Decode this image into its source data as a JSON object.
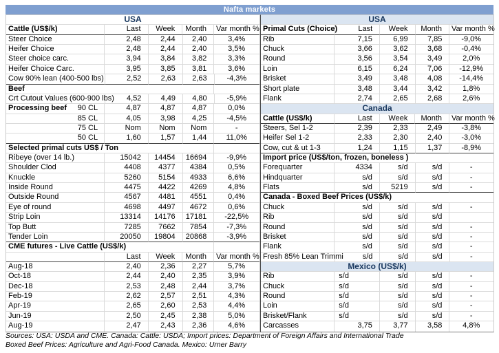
{
  "banner": {
    "title": "Nafta markets",
    "bg_color": "#7f9fd0",
    "text_color": "#ffffff"
  },
  "colors": {
    "section_header_bg": "#dbe5f1",
    "section_header_text": "#17365d",
    "gridline": "#dadada"
  },
  "left_table": {
    "columns": [
      "Last",
      "Week",
      "Month",
      "Var month %"
    ],
    "rows": [
      {
        "kind": "title",
        "label": "USA"
      },
      {
        "kind": "colheader",
        "label": "Cattle (US$/k)"
      },
      {
        "kind": "data",
        "label": "Steer Choice",
        "last": "2,48",
        "week": "2,44",
        "month": "2,40",
        "var": "3,4%"
      },
      {
        "kind": "data",
        "label": "Heifer Choice",
        "last": "2,48",
        "week": "2,44",
        "month": "2,40",
        "var": "3,5%"
      },
      {
        "kind": "data",
        "label": "Steer choice carc.",
        "last": "3,94",
        "week": "3,84",
        "month": "3,82",
        "var": "3,3%"
      },
      {
        "kind": "data",
        "label": "Heifer Choice Carc.",
        "last": "3,95",
        "week": "3,85",
        "month": "3,81",
        "var": "3,6%"
      },
      {
        "kind": "data",
        "label": "Cow 90% lean (400-500 lbs)",
        "last": "2,52",
        "week": "2,63",
        "month": "2,63",
        "var": "-4,3%"
      },
      {
        "kind": "section",
        "label": "Beef"
      },
      {
        "kind": "data",
        "label": "Crt Cutout Values (600-900 lbs)",
        "last": "4,52",
        "week": "4,49",
        "month": "4,80",
        "var": "-5,9%"
      },
      {
        "kind": "data",
        "label": "Processing beef",
        "bold_label": true,
        "sublabel": "90 CL",
        "last": "4,87",
        "week": "4,87",
        "month": "4,87",
        "var": "0,0%"
      },
      {
        "kind": "data",
        "label": "",
        "sublabel": "85 CL",
        "last": "4,05",
        "week": "3,98",
        "month": "4,25",
        "var": "-4,5%"
      },
      {
        "kind": "data",
        "label": "",
        "sublabel": "75 CL",
        "last": "Nom",
        "week": "Nom",
        "month": "Nom",
        "var": "-"
      },
      {
        "kind": "data",
        "label": "",
        "sublabel": "50 CL",
        "last": "1,60",
        "week": "1,57",
        "month": "1,44",
        "var": "11,0%"
      },
      {
        "kind": "section",
        "label": "Selected primal cuts US$ / Ton"
      },
      {
        "kind": "data",
        "label": "Ribeye (over 14 lb.)",
        "last": "15042",
        "week": "14454",
        "month": "16694",
        "var": "-9,9%"
      },
      {
        "kind": "data",
        "label": "Shoulder Clod",
        "last": "4408",
        "week": "4377",
        "month": "4384",
        "var": "0,5%"
      },
      {
        "kind": "data",
        "label": "Knuckle",
        "last": "5260",
        "week": "5154",
        "month": "4933",
        "var": "6,6%"
      },
      {
        "kind": "data",
        "label": "Inside Round",
        "last": "4475",
        "week": "4422",
        "month": "4269",
        "var": "4,8%"
      },
      {
        "kind": "data",
        "label": "Outside Round",
        "last": "4567",
        "week": "4481",
        "month": "4551",
        "var": "0,4%"
      },
      {
        "kind": "data",
        "label": "Eye of round",
        "last": "4698",
        "week": "4497",
        "month": "4672",
        "var": "0,6%"
      },
      {
        "kind": "data",
        "label": "Strip Loin",
        "last": "13314",
        "week": "14176",
        "month": "17181",
        "var": "-22,5%"
      },
      {
        "kind": "data",
        "label": "Top Butt",
        "last": "7285",
        "week": "7662",
        "month": "7854",
        "var": "-7,3%"
      },
      {
        "kind": "data",
        "label": "Tender Loin",
        "last": "20050",
        "week": "19804",
        "month": "20868",
        "var": "-3,9%"
      },
      {
        "kind": "section",
        "label": "CME futures - Live Cattle (US$/k)"
      },
      {
        "kind": "colheader",
        "label": ""
      },
      {
        "kind": "data",
        "label": "Aug-18",
        "last": "2,40",
        "week": "2,36",
        "month": "2,27",
        "var": "5,7%"
      },
      {
        "kind": "data",
        "label": "Oct-18",
        "last": "2,44",
        "week": "2,40",
        "month": "2,35",
        "var": "3,9%"
      },
      {
        "kind": "data",
        "label": "Dec-18",
        "last": "2,53",
        "week": "2,48",
        "month": "2,44",
        "var": "3,7%"
      },
      {
        "kind": "data",
        "label": "Feb-19",
        "last": "2,62",
        "week": "2,57",
        "month": "2,51",
        "var": "4,3%"
      },
      {
        "kind": "data",
        "label": "Apr-19",
        "last": "2,65",
        "week": "2,60",
        "month": "2,53",
        "var": "4,4%"
      },
      {
        "kind": "data",
        "label": "Jun-19",
        "last": "2,50",
        "week": "2,45",
        "month": "2,38",
        "var": "5,0%"
      },
      {
        "kind": "data",
        "label": "Aug-19",
        "last": "2,47",
        "week": "2,43",
        "month": "2,36",
        "var": "4,6%"
      }
    ]
  },
  "right_table": {
    "columns": [
      "Last",
      "Week",
      "Month",
      "Var month %"
    ],
    "rows": [
      {
        "kind": "title-blue",
        "label": "USA"
      },
      {
        "kind": "colheader",
        "label": "Primal Cuts (Choice)"
      },
      {
        "kind": "data",
        "label": "Rib",
        "last": "7,15",
        "week": "6,99",
        "month": "7,85",
        "var": "-9,0%"
      },
      {
        "kind": "data",
        "label": "Chuck",
        "last": "3,66",
        "week": "3,62",
        "month": "3,68",
        "var": "-0,4%"
      },
      {
        "kind": "data",
        "label": "Round",
        "last": "3,56",
        "week": "3,54",
        "month": "3,49",
        "var": "2,0%"
      },
      {
        "kind": "data",
        "label": "Loin",
        "last": "6,15",
        "week": "6,24",
        "month": "7,06",
        "var": "-12,9%"
      },
      {
        "kind": "data",
        "label": "Brisket",
        "last": "3,49",
        "week": "3,48",
        "month": "4,08",
        "var": "-14,4%"
      },
      {
        "kind": "data",
        "label": "Short plate",
        "last": "3,48",
        "week": "3,44",
        "month": "3,42",
        "var": "1,8%"
      },
      {
        "kind": "data",
        "label": "Flank",
        "last": "2,74",
        "week": "2,65",
        "month": "2,68",
        "var": "2,6%"
      },
      {
        "kind": "title-blue",
        "label": "Canada"
      },
      {
        "kind": "colheader",
        "label": "Cattle (US$/k)"
      },
      {
        "kind": "data",
        "label": "Steers, Sel 1-2",
        "last": "2,39",
        "week": "2,33",
        "month": "2,49",
        "var": "-3,8%"
      },
      {
        "kind": "data",
        "label": "Heifer Sel 1-2",
        "last": "2,33",
        "week": "2,30",
        "month": "2,40",
        "var": "-3,0%"
      },
      {
        "kind": "data",
        "label": "Cow, cut & ut 1-3",
        "last": "1,24",
        "week": "1,15",
        "month": "1,37",
        "var": "-8,9%"
      },
      {
        "kind": "section",
        "label": "Import price (US$/ton, frozen, boneless )"
      },
      {
        "kind": "data",
        "label": "Forequarter",
        "last": "4334",
        "week": "s/d",
        "month": "s/d",
        "var": "-"
      },
      {
        "kind": "data",
        "label": "Hindquarter",
        "last": "s/d",
        "week": "s/d",
        "month": "s/d",
        "var": "-"
      },
      {
        "kind": "data",
        "label": "Flats",
        "last": "s/d",
        "week": "5219",
        "month": "s/d",
        "var": "-"
      },
      {
        "kind": "section",
        "label": "Canada - Boxed Beef Prices (US$/k)"
      },
      {
        "kind": "data",
        "label": "Chuck",
        "last": "s/d",
        "week": "s/d",
        "month": "s/d",
        "var": "-"
      },
      {
        "kind": "data",
        "label": "Rib",
        "last": "s/d",
        "week": "s/d",
        "month": "s/d",
        "var": ""
      },
      {
        "kind": "data",
        "label": "Round",
        "last": "s/d",
        "week": "s/d",
        "month": "s/d",
        "var": "-"
      },
      {
        "kind": "data",
        "label": "Brisket",
        "last": "s/d",
        "week": "s/d",
        "month": "s/d",
        "var": "-"
      },
      {
        "kind": "data",
        "label": "Flank",
        "last": "s/d",
        "week": "s/d",
        "month": "s/d",
        "var": "-"
      },
      {
        "kind": "data",
        "label": "Fresh 85% Lean Trimmi",
        "last": "s/d",
        "week": "s/d",
        "month": "s/d",
        "var": "-"
      },
      {
        "kind": "title-blue",
        "label": "Mexico (US$/k)"
      },
      {
        "kind": "data",
        "label": "Rib",
        "last": "s/d",
        "last_align": "left",
        "week": "s/d",
        "month": "s/d",
        "var": "-"
      },
      {
        "kind": "data",
        "label": "Chuck",
        "last": "s/d",
        "last_align": "left",
        "week": "s/d",
        "month": "s/d",
        "var": "-"
      },
      {
        "kind": "data",
        "label": "Round",
        "last": "s/d",
        "last_align": "left",
        "week": "s/d",
        "month": "s/d",
        "var": "-"
      },
      {
        "kind": "data",
        "label": "Loin",
        "last": "s/d",
        "last_align": "left",
        "week": "s/d",
        "month": "s/d",
        "var": "-"
      },
      {
        "kind": "data",
        "label": "Brisket/Flank",
        "last": "s/d",
        "last_align": "left",
        "week": "s/d",
        "month": "s/d",
        "var": "-"
      },
      {
        "kind": "data",
        "label": "Carcasses",
        "last": "3,75",
        "week": "3,77",
        "month": "3,58",
        "var": "4,8%"
      }
    ]
  },
  "footer": {
    "line1": "Sources: USA: USDA and CME. Canada: Cattle: USDA; Import prices: Department of Foreign Affairs and International Trade",
    "line2": "Boxed Beef Prices: Agriculture and Agri-Food Canada. Mexico: Urner Barry"
  }
}
